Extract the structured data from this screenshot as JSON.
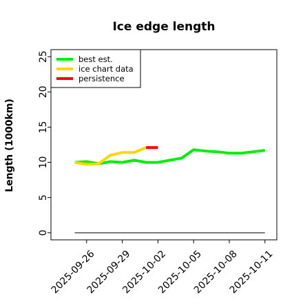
{
  "chart_data": {
    "type": "line",
    "title": "Ice edge length",
    "ylabel": "Length (1000km)",
    "xlabel": "",
    "x_ticks": [
      "2025-09-26",
      "2025-09-29",
      "2025-10-02",
      "2025-10-05",
      "2025-10-08",
      "2025-10-11"
    ],
    "y_ticks": [
      0,
      5,
      10,
      15,
      20,
      25
    ],
    "xlim": [
      "2025-09-23",
      "2025-10-12"
    ],
    "ylim": [
      -1,
      26
    ],
    "grid": false,
    "legend_position": "top-left",
    "series": [
      {
        "name": "best est.",
        "color": "#00ee00",
        "x": [
          "2025-09-25",
          "2025-09-26",
          "2025-09-27",
          "2025-09-28",
          "2025-09-29",
          "2025-09-30",
          "2025-10-01",
          "2025-10-02",
          "2025-10-03",
          "2025-10-04",
          "2025-10-05",
          "2025-10-06",
          "2025-10-07",
          "2025-10-08",
          "2025-10-09",
          "2025-10-10",
          "2025-10-11"
        ],
        "y": [
          10.0,
          10.1,
          9.8,
          10.1,
          10.0,
          10.3,
          10.0,
          10.0,
          10.3,
          10.6,
          11.8,
          11.6,
          11.5,
          11.3,
          11.3,
          11.5,
          11.7
        ]
      },
      {
        "name": "ice chart data",
        "color": "#ffd700",
        "x": [
          "2025-09-25",
          "2025-09-26",
          "2025-09-27",
          "2025-09-28",
          "2025-09-29",
          "2025-09-30",
          "2025-10-01"
        ],
        "y": [
          10.0,
          9.7,
          9.8,
          11.0,
          11.4,
          11.4,
          12.1
        ]
      },
      {
        "name": "persistence",
        "color": "#ff0000",
        "x": [
          "2025-10-01",
          "2025-10-02"
        ],
        "y": [
          12.1,
          12.1
        ]
      }
    ],
    "baseline": {
      "y": 0,
      "x": [
        "2025-09-25",
        "2025-10-11"
      ],
      "color": "#555555"
    }
  }
}
